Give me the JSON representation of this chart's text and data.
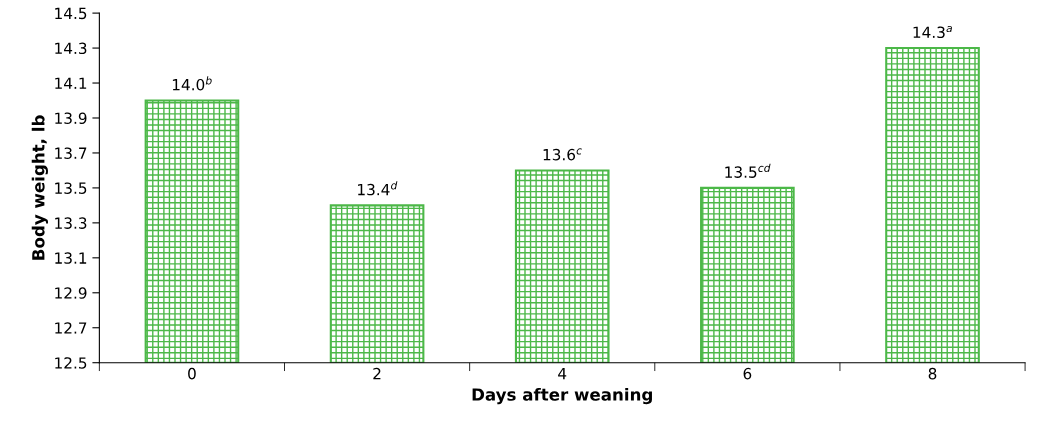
{
  "chart_data": {
    "type": "bar",
    "xlabel": "Days after weaning",
    "ylabel": "Body weight, lb",
    "categories": [
      "0",
      "2",
      "4",
      "6",
      "8"
    ],
    "values": [
      14.0,
      13.4,
      13.6,
      13.5,
      14.3
    ],
    "value_labels": [
      "14.0$^{b}$",
      "13.4$^{d}$",
      "13.6$^{c}$",
      "13.5$^{cd}$",
      "14.3$^{a}$"
    ],
    "color": "#4cb848",
    "ylim": [
      12.5,
      14.5
    ],
    "yticks": [
      12.5,
      12.7,
      12.9,
      13.1,
      13.3,
      13.5,
      13.7,
      13.9,
      14.1,
      14.3,
      14.5
    ],
    "grid": false,
    "legend": false
  }
}
